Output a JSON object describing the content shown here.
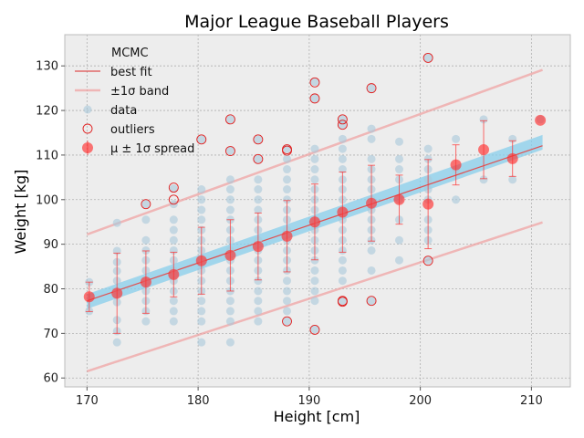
{
  "chart_data": {
    "type": "scatter",
    "title": "Major League Baseball Players",
    "xlabel": "Height [cm]",
    "ylabel": "Weight [kg]",
    "xlim": [
      168,
      213.5
    ],
    "ylim": [
      58,
      137
    ],
    "xticks": [
      170,
      180,
      190,
      200,
      210
    ],
    "yticks": [
      60,
      70,
      80,
      90,
      100,
      110,
      120,
      130
    ],
    "grid": true,
    "legend_position": "top-left",
    "legend": {
      "mcmc": "MCMC",
      "best_fit": "best fit",
      "band": "±1σ band",
      "data": "data",
      "outliers": "outliers",
      "spread": "μ ± 1σ spread"
    },
    "colors": {
      "background": "#ededed",
      "mcmc": "#87ceeb",
      "data": "#a8c8da",
      "fit": "#e05050",
      "band": "#f0a0a0",
      "outlier": "#e02020",
      "spread": "#ff3030"
    },
    "heights": [
      170.2,
      172.7,
      175.3,
      177.8,
      180.3,
      182.9,
      185.4,
      188.0,
      190.5,
      193.0,
      195.6,
      198.1,
      200.7,
      203.2,
      205.7,
      208.3,
      210.8
    ],
    "best_fit": {
      "x": [
        170,
        211
      ],
      "y": [
        77.3,
        112.1
      ]
    },
    "band": {
      "x": [
        170,
        211
      ],
      "upper": [
        92.2,
        129.1
      ],
      "lower": [
        61.5,
        94.9
      ]
    },
    "mcmc_band": {
      "x": [
        170,
        211
      ],
      "upper": [
        78.8,
        114.5
      ],
      "lower": [
        75.5,
        111.2
      ]
    },
    "series": [
      {
        "name": "data",
        "points": [
          [
            170.2,
            75.0
          ],
          [
            170.2,
            81.5
          ],
          [
            172.7,
            68.0
          ],
          [
            172.7,
            70.5
          ],
          [
            172.7,
            73.0
          ],
          [
            172.7,
            77.0
          ],
          [
            172.7,
            79.5
          ],
          [
            172.7,
            81.8
          ],
          [
            172.7,
            84.0
          ],
          [
            172.7,
            86.0
          ],
          [
            172.7,
            88.5
          ],
          [
            172.7,
            94.8
          ],
          [
            175.3,
            72.7
          ],
          [
            175.3,
            75.0
          ],
          [
            175.3,
            77.3
          ],
          [
            175.3,
            79.5
          ],
          [
            175.3,
            81.8
          ],
          [
            175.3,
            84.1
          ],
          [
            175.3,
            86.4
          ],
          [
            175.3,
            88.6
          ],
          [
            175.3,
            90.9
          ],
          [
            175.3,
            95.5
          ],
          [
            175.3,
            99.0
          ],
          [
            177.8,
            72.7
          ],
          [
            177.8,
            75.0
          ],
          [
            177.8,
            77.3
          ],
          [
            177.8,
            79.5
          ],
          [
            177.8,
            81.8
          ],
          [
            177.8,
            83.0
          ],
          [
            177.8,
            84.1
          ],
          [
            177.8,
            86.4
          ],
          [
            177.8,
            88.6
          ],
          [
            177.8,
            90.9
          ],
          [
            177.8,
            93.2
          ],
          [
            177.8,
            95.5
          ],
          [
            177.8,
            99.0
          ],
          [
            177.8,
            102.5
          ],
          [
            180.3,
            68.0
          ],
          [
            180.3,
            72.7
          ],
          [
            180.3,
            75.0
          ],
          [
            180.3,
            77.3
          ],
          [
            180.3,
            79.5
          ],
          [
            180.3,
            81.8
          ],
          [
            180.3,
            84.1
          ],
          [
            180.3,
            86.4
          ],
          [
            180.3,
            88.6
          ],
          [
            180.3,
            90.9
          ],
          [
            180.3,
            93.2
          ],
          [
            180.3,
            95.5
          ],
          [
            180.3,
            97.7
          ],
          [
            180.3,
            100.0
          ],
          [
            180.3,
            102.3
          ],
          [
            180.3,
            113.5
          ],
          [
            182.9,
            68.0
          ],
          [
            182.9,
            72.7
          ],
          [
            182.9,
            75.0
          ],
          [
            182.9,
            77.3
          ],
          [
            182.9,
            79.5
          ],
          [
            182.9,
            81.8
          ],
          [
            182.9,
            84.1
          ],
          [
            182.9,
            86.4
          ],
          [
            182.9,
            88.6
          ],
          [
            182.9,
            90.9
          ],
          [
            182.9,
            93.2
          ],
          [
            182.9,
            95.5
          ],
          [
            182.9,
            97.7
          ],
          [
            182.9,
            100.0
          ],
          [
            182.9,
            102.3
          ],
          [
            182.9,
            104.5
          ],
          [
            182.9,
            111.0
          ],
          [
            182.9,
            118.0
          ],
          [
            185.4,
            72.7
          ],
          [
            185.4,
            75.0
          ],
          [
            185.4,
            77.3
          ],
          [
            185.4,
            79.5
          ],
          [
            185.4,
            81.8
          ],
          [
            185.4,
            84.1
          ],
          [
            185.4,
            86.4
          ],
          [
            185.4,
            88.6
          ],
          [
            185.4,
            90.9
          ],
          [
            185.4,
            93.2
          ],
          [
            185.4,
            95.5
          ],
          [
            185.4,
            97.7
          ],
          [
            185.4,
            100.0
          ],
          [
            185.4,
            102.3
          ],
          [
            185.4,
            104.5
          ],
          [
            185.4,
            109.1
          ],
          [
            185.4,
            113.5
          ],
          [
            188.0,
            72.7
          ],
          [
            188.0,
            75.0
          ],
          [
            188.0,
            77.3
          ],
          [
            188.0,
            79.5
          ],
          [
            188.0,
            81.8
          ],
          [
            188.0,
            84.1
          ],
          [
            188.0,
            86.4
          ],
          [
            188.0,
            88.6
          ],
          [
            188.0,
            90.9
          ],
          [
            188.0,
            93.2
          ],
          [
            188.0,
            95.5
          ],
          [
            188.0,
            97.7
          ],
          [
            188.0,
            100.0
          ],
          [
            188.0,
            102.3
          ],
          [
            188.0,
            104.5
          ],
          [
            188.0,
            106.8
          ],
          [
            188.0,
            109.1
          ],
          [
            188.0,
            111.4
          ],
          [
            190.5,
            70.9
          ],
          [
            190.5,
            77.3
          ],
          [
            190.5,
            79.5
          ],
          [
            190.5,
            81.8
          ],
          [
            190.5,
            84.1
          ],
          [
            190.5,
            86.4
          ],
          [
            190.5,
            88.6
          ],
          [
            190.5,
            90.9
          ],
          [
            190.5,
            93.2
          ],
          [
            190.5,
            95.5
          ],
          [
            190.5,
            97.7
          ],
          [
            190.5,
            100.0
          ],
          [
            190.5,
            102.3
          ],
          [
            190.5,
            104.5
          ],
          [
            190.5,
            106.8
          ],
          [
            190.5,
            109.1
          ],
          [
            190.5,
            111.4
          ],
          [
            190.5,
            122.7
          ],
          [
            190.5,
            126.4
          ],
          [
            193.0,
            77.3
          ],
          [
            193.0,
            81.8
          ],
          [
            193.0,
            84.1
          ],
          [
            193.0,
            86.4
          ],
          [
            193.0,
            88.6
          ],
          [
            193.0,
            90.9
          ],
          [
            193.0,
            93.2
          ],
          [
            193.0,
            95.5
          ],
          [
            193.0,
            97.7
          ],
          [
            193.0,
            100.0
          ],
          [
            193.0,
            102.3
          ],
          [
            193.0,
            104.5
          ],
          [
            193.0,
            106.8
          ],
          [
            193.0,
            109.1
          ],
          [
            193.0,
            111.4
          ],
          [
            193.0,
            113.6
          ],
          [
            193.0,
            116.8
          ],
          [
            193.0,
            118.0
          ],
          [
            195.6,
            77.3
          ],
          [
            195.6,
            84.1
          ],
          [
            195.6,
            88.6
          ],
          [
            195.6,
            90.9
          ],
          [
            195.6,
            93.2
          ],
          [
            195.6,
            95.5
          ],
          [
            195.6,
            97.7
          ],
          [
            195.6,
            100.0
          ],
          [
            195.6,
            102.3
          ],
          [
            195.6,
            104.5
          ],
          [
            195.6,
            106.8
          ],
          [
            195.6,
            109.1
          ],
          [
            195.6,
            113.6
          ],
          [
            195.6,
            115.9
          ],
          [
            195.6,
            125.0
          ],
          [
            198.1,
            86.4
          ],
          [
            198.1,
            90.9
          ],
          [
            198.1,
            95.5
          ],
          [
            198.1,
            100.0
          ],
          [
            198.1,
            104.5
          ],
          [
            198.1,
            106.8
          ],
          [
            198.1,
            109.1
          ],
          [
            198.1,
            113.0
          ],
          [
            200.7,
            86.4
          ],
          [
            200.7,
            90.9
          ],
          [
            200.7,
            93.2
          ],
          [
            200.7,
            95.5
          ],
          [
            200.7,
            100.0
          ],
          [
            200.7,
            102.3
          ],
          [
            200.7,
            104.5
          ],
          [
            200.7,
            106.8
          ],
          [
            200.7,
            109.1
          ],
          [
            200.7,
            111.4
          ],
          [
            200.7,
            131.8
          ],
          [
            203.2,
            100.0
          ],
          [
            203.2,
            106.8
          ],
          [
            203.2,
            113.6
          ],
          [
            205.7,
            104.5
          ],
          [
            205.7,
            118.0
          ],
          [
            208.3,
            104.5
          ],
          [
            208.3,
            113.6
          ],
          [
            210.8,
            118.0
          ]
        ]
      },
      {
        "name": "outliers",
        "points": [
          [
            175.3,
            99.0
          ],
          [
            177.8,
            102.7
          ],
          [
            177.8,
            100.0
          ],
          [
            180.3,
            113.5
          ],
          [
            182.9,
            118.0
          ],
          [
            182.9,
            110.9
          ],
          [
            185.4,
            113.5
          ],
          [
            185.4,
            109.1
          ],
          [
            188.0,
            111.3
          ],
          [
            188.0,
            111.0
          ],
          [
            188.0,
            72.7
          ],
          [
            190.5,
            126.3
          ],
          [
            190.5,
            122.7
          ],
          [
            190.5,
            70.8
          ],
          [
            193.0,
            118.0
          ],
          [
            193.0,
            116.8
          ],
          [
            193.0,
            77.3
          ],
          [
            193.0,
            77.1
          ],
          [
            195.6,
            125.0
          ],
          [
            195.6,
            77.3
          ],
          [
            200.7,
            131.8
          ],
          [
            200.7,
            86.3
          ]
        ]
      },
      {
        "name": "μ ± 1σ spread",
        "points": [
          [
            170.2,
            78.2,
            3.3
          ],
          [
            172.7,
            79.0,
            9.0
          ],
          [
            175.3,
            81.5,
            7.0
          ],
          [
            177.8,
            83.2,
            5.0
          ],
          [
            180.3,
            86.3,
            7.5
          ],
          [
            182.9,
            87.5,
            8.0
          ],
          [
            185.4,
            89.5,
            7.5
          ],
          [
            188.0,
            91.8,
            8.0
          ],
          [
            190.5,
            95.0,
            8.5
          ],
          [
            193.0,
            97.2,
            9.0
          ],
          [
            195.6,
            99.2,
            8.5
          ],
          [
            198.1,
            100.0,
            5.5
          ],
          [
            200.7,
            99.0,
            10.0
          ],
          [
            203.2,
            107.8,
            4.5
          ],
          [
            205.7,
            111.2,
            6.5
          ],
          [
            208.3,
            109.2,
            4.0
          ],
          [
            210.8,
            117.8,
            0
          ]
        ]
      }
    ]
  }
}
